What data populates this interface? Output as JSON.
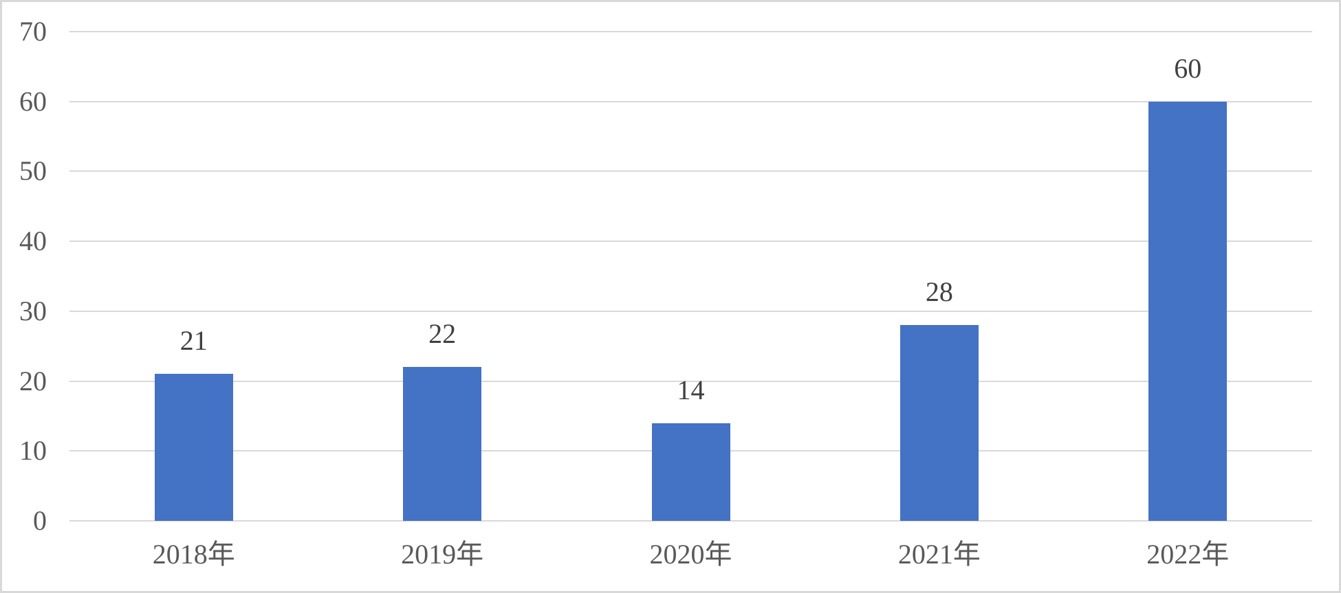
{
  "chart_data": {
    "type": "bar",
    "title": "",
    "xlabel": "",
    "ylabel": "",
    "categories": [
      "2018年",
      "2019年",
      "2020年",
      "2021年",
      "2022年"
    ],
    "values": [
      21,
      22,
      14,
      28,
      60
    ],
    "data_labels": [
      "21",
      "22",
      "14",
      "28",
      "60"
    ],
    "ylim": [
      0,
      70
    ],
    "yticks": [
      0,
      10,
      20,
      30,
      40,
      50,
      60,
      70
    ],
    "ytick_labels": [
      "0",
      "10",
      "20",
      "30",
      "40",
      "50",
      "60",
      "70"
    ],
    "grid": true,
    "legend": false,
    "colors": {
      "bar": "#4472C4",
      "gridline": "#D9D9D9",
      "axis_text": "#595959",
      "data_label_text": "#404040",
      "frame_border": "#D8D8D8",
      "background": "#FFFFFF"
    }
  }
}
